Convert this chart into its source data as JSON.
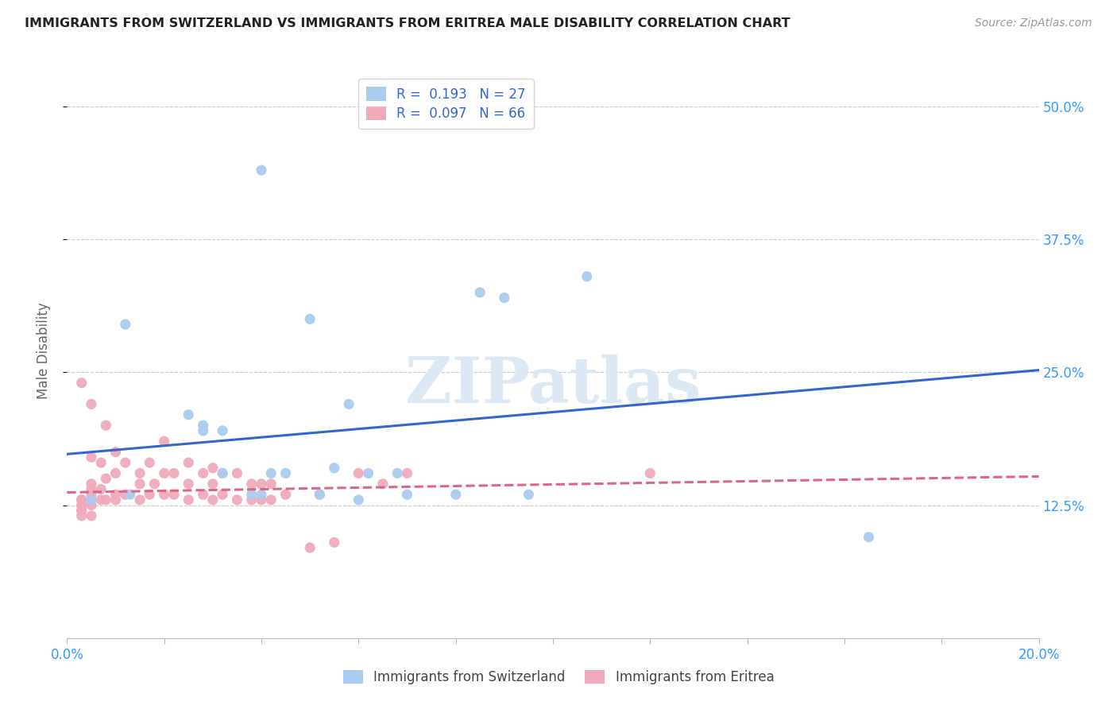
{
  "title": "IMMIGRANTS FROM SWITZERLAND VS IMMIGRANTS FROM ERITREA MALE DISABILITY CORRELATION CHART",
  "source": "Source: ZipAtlas.com",
  "ylabel": "Male Disability",
  "xlim": [
    0.0,
    0.2
  ],
  "ylim": [
    0.0,
    0.54
  ],
  "ytick_positions": [
    0.125,
    0.25,
    0.375,
    0.5
  ],
  "ytick_labels": [
    "12.5%",
    "25.0%",
    "37.5%",
    "50.0%"
  ],
  "switzerland_color": "#aaccf0",
  "eritrea_color": "#f0aabb",
  "switzerland_line_color": "#3366cc",
  "eritrea_line_color": "#dd6688",
  "switzerland_R": 0.193,
  "switzerland_N": 27,
  "eritrea_R": 0.097,
  "eritrea_N": 66,
  "sw_line_x0": 0.0,
  "sw_line_y0": 0.173,
  "sw_line_x1": 0.2,
  "sw_line_y1": 0.252,
  "er_line_x0": 0.0,
  "er_line_y0": 0.137,
  "er_line_x1": 0.2,
  "er_line_y1": 0.152,
  "switzerland_x": [
    0.005,
    0.012,
    0.025,
    0.028,
    0.028,
    0.032,
    0.032,
    0.038,
    0.04,
    0.04,
    0.042,
    0.045,
    0.05,
    0.052,
    0.055,
    0.058,
    0.06,
    0.062,
    0.068,
    0.07,
    0.08,
    0.085,
    0.09,
    0.095,
    0.107,
    0.165,
    0.013
  ],
  "switzerland_y": [
    0.13,
    0.295,
    0.21,
    0.195,
    0.2,
    0.195,
    0.155,
    0.135,
    0.44,
    0.135,
    0.155,
    0.155,
    0.3,
    0.135,
    0.16,
    0.22,
    0.13,
    0.155,
    0.155,
    0.135,
    0.135,
    0.325,
    0.32,
    0.135,
    0.34,
    0.095,
    0.135
  ],
  "eritrea_x": [
    0.003,
    0.003,
    0.003,
    0.003,
    0.003,
    0.003,
    0.003,
    0.005,
    0.005,
    0.005,
    0.005,
    0.005,
    0.005,
    0.005,
    0.007,
    0.007,
    0.007,
    0.008,
    0.008,
    0.008,
    0.01,
    0.01,
    0.01,
    0.01,
    0.012,
    0.012,
    0.015,
    0.015,
    0.015,
    0.017,
    0.017,
    0.018,
    0.02,
    0.02,
    0.02,
    0.022,
    0.022,
    0.025,
    0.025,
    0.025,
    0.028,
    0.028,
    0.03,
    0.03,
    0.03,
    0.032,
    0.032,
    0.035,
    0.035,
    0.038,
    0.038,
    0.04,
    0.04,
    0.042,
    0.042,
    0.045,
    0.05,
    0.052,
    0.055,
    0.06,
    0.065,
    0.07,
    0.12,
    0.005,
    0.003,
    0.003
  ],
  "eritrea_y": [
    0.13,
    0.13,
    0.125,
    0.125,
    0.12,
    0.12,
    0.115,
    0.22,
    0.17,
    0.14,
    0.135,
    0.13,
    0.125,
    0.115,
    0.165,
    0.14,
    0.13,
    0.2,
    0.15,
    0.13,
    0.175,
    0.155,
    0.135,
    0.13,
    0.165,
    0.135,
    0.155,
    0.145,
    0.13,
    0.165,
    0.135,
    0.145,
    0.185,
    0.155,
    0.135,
    0.155,
    0.135,
    0.165,
    0.145,
    0.13,
    0.155,
    0.135,
    0.16,
    0.145,
    0.13,
    0.155,
    0.135,
    0.155,
    0.13,
    0.145,
    0.13,
    0.145,
    0.13,
    0.145,
    0.13,
    0.135,
    0.085,
    0.135,
    0.09,
    0.155,
    0.145,
    0.155,
    0.155,
    0.145,
    0.24,
    0.13
  ]
}
